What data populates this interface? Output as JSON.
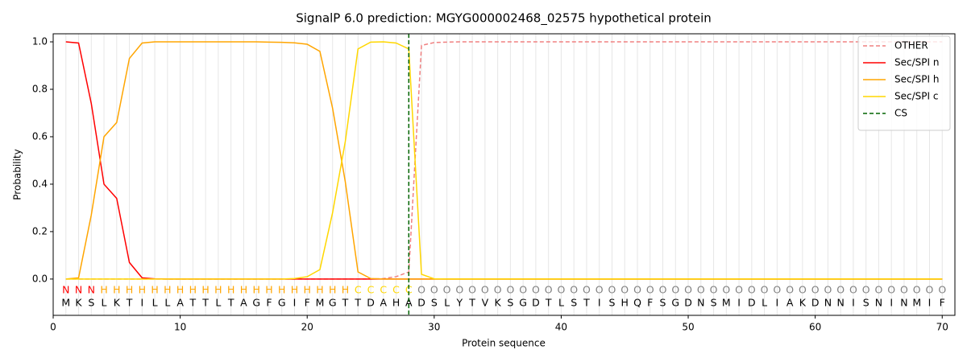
{
  "chart_data": {
    "type": "line",
    "title": "SignalP 6.0 prediction: MGYG000002468_02575 hypothetical protein",
    "x_label": "Protein sequence",
    "y_label": "Probability",
    "xlim": [
      0,
      71
    ],
    "ylim": [
      -0.153,
      1.034
    ],
    "xticks": [
      0,
      10,
      20,
      30,
      40,
      50,
      60,
      70
    ],
    "yticks": [
      {
        "value": 0,
        "label": "0.0"
      },
      0.2,
      0.4,
      0.6,
      0.8,
      {
        "value": 1,
        "label": "1.0"
      }
    ],
    "grid": true,
    "legend": "upper right",
    "x": [
      1,
      2,
      3,
      4,
      5,
      6,
      7,
      8,
      9,
      10,
      11,
      12,
      13,
      14,
      15,
      16,
      17,
      18,
      19,
      20,
      21,
      22,
      23,
      24,
      25,
      26,
      27,
      28,
      29,
      30,
      31,
      32,
      33,
      34,
      35,
      36,
      37,
      38,
      39,
      40,
      41,
      42,
      43,
      44,
      45,
      46,
      47,
      48,
      49,
      50,
      51,
      52,
      53,
      54,
      55,
      56,
      57,
      58,
      59,
      60,
      61,
      62,
      63,
      64,
      65,
      66,
      67,
      68,
      69,
      70
    ],
    "sequence": [
      "M",
      "K",
      "S",
      "L",
      "K",
      "T",
      "I",
      "L",
      "L",
      "A",
      "T",
      "T",
      "L",
      "T",
      "A",
      "G",
      "F",
      "G",
      "I",
      "F",
      "M",
      "G",
      "T",
      "T",
      "D",
      "A",
      "H",
      "A",
      "D",
      "S",
      "L",
      "Y",
      "T",
      "V",
      "K",
      "S",
      "G",
      "D",
      "T",
      "L",
      "S",
      "T",
      "I",
      "S",
      "H",
      "Q",
      "F",
      "S",
      "G",
      "D",
      "N",
      "S",
      "M",
      "I",
      "D",
      "L",
      "I",
      "A",
      "K",
      "D",
      "N",
      "N",
      "I",
      "S",
      "N",
      "I",
      "N",
      "M",
      "I",
      "F"
    ],
    "labels": [
      "N",
      "N",
      "N",
      "H",
      "H",
      "H",
      "H",
      "H",
      "H",
      "H",
      "H",
      "H",
      "H",
      "H",
      "H",
      "H",
      "H",
      "H",
      "H",
      "H",
      "H",
      "H",
      "H",
      "C",
      "C",
      "C",
      "C",
      "C",
      "O",
      "O",
      "O",
      "O",
      "O",
      "O",
      "O",
      "O",
      "O",
      "O",
      "O",
      "O",
      "O",
      "O",
      "O",
      "O",
      "O",
      "O",
      "O",
      "O",
      "O",
      "O",
      "O",
      "O",
      "O",
      "O",
      "O",
      "O",
      "O",
      "O",
      "O",
      "O",
      "O",
      "O",
      "O",
      "O",
      "O",
      "O",
      "O",
      "O",
      "O",
      "O"
    ],
    "label_colors": {
      "N": "red",
      "H": "orange",
      "C": "gold",
      "O": "grey"
    },
    "series": [
      {
        "name": "OTHER",
        "color": "lightcoral",
        "dashed": true,
        "values": [
          0,
          0,
          0,
          0,
          0,
          0,
          0,
          0,
          0,
          0,
          0,
          0,
          0,
          0,
          0,
          0,
          0,
          0,
          0,
          0,
          0,
          0,
          0,
          0,
          0,
          0.002,
          0.01,
          0.03,
          0.985,
          0.997,
          0.999,
          1,
          1,
          1,
          1,
          1,
          1,
          1,
          1,
          1,
          1,
          1,
          1,
          1,
          1,
          1,
          1,
          1,
          1,
          1,
          1,
          1,
          1,
          1,
          1,
          1,
          1,
          1,
          1,
          1,
          1,
          1,
          1,
          1,
          1,
          1,
          1,
          1,
          1,
          1
        ]
      },
      {
        "name": "Sec/SPI n",
        "color": "red",
        "dashed": false,
        "values": [
          1.0,
          0.995,
          0.74,
          0.4,
          0.34,
          0.07,
          0.005,
          0.001,
          0,
          0,
          0,
          0,
          0,
          0,
          0,
          0,
          0,
          0,
          0,
          0,
          0,
          0,
          0,
          0,
          0,
          0,
          0,
          0,
          0,
          0,
          0,
          0,
          0,
          0,
          0,
          0,
          0,
          0,
          0,
          0,
          0,
          0,
          0,
          0,
          0,
          0,
          0,
          0,
          0,
          0,
          0,
          0,
          0,
          0,
          0,
          0,
          0,
          0,
          0,
          0,
          0,
          0,
          0,
          0,
          0,
          0,
          0,
          0,
          0,
          0
        ]
      },
      {
        "name": "Sec/SPI h",
        "color": "orange",
        "dashed": false,
        "values": [
          0,
          0.005,
          0.27,
          0.6,
          0.66,
          0.93,
          0.995,
          1,
          1,
          1,
          1,
          1,
          1,
          1,
          1,
          1,
          0.999,
          0.998,
          0.996,
          0.99,
          0.96,
          0.72,
          0.41,
          0.03,
          0.002,
          0,
          0,
          0,
          0,
          0,
          0,
          0,
          0,
          0,
          0,
          0,
          0,
          0,
          0,
          0,
          0,
          0,
          0,
          0,
          0,
          0,
          0,
          0,
          0,
          0,
          0,
          0,
          0,
          0,
          0,
          0,
          0,
          0,
          0,
          0,
          0,
          0,
          0,
          0,
          0,
          0,
          0,
          0,
          0,
          0
        ]
      },
      {
        "name": "Sec/SPI c",
        "color": "gold",
        "dashed": false,
        "values": [
          0,
          0,
          0,
          0,
          0,
          0,
          0,
          0,
          0,
          0,
          0,
          0,
          0,
          0,
          0,
          0,
          0,
          0,
          0.002,
          0.01,
          0.04,
          0.28,
          0.58,
          0.97,
          0.999,
          1,
          0.995,
          0.97,
          0.02,
          0.001,
          0,
          0,
          0,
          0,
          0,
          0,
          0,
          0,
          0,
          0,
          0,
          0,
          0,
          0,
          0,
          0,
          0,
          0,
          0,
          0,
          0,
          0,
          0,
          0,
          0,
          0,
          0,
          0,
          0,
          0,
          0,
          0,
          0,
          0,
          0,
          0,
          0,
          0,
          0,
          0
        ]
      }
    ],
    "cs": {
      "name": "CS",
      "x": 28,
      "color": "darkgreen"
    }
  }
}
